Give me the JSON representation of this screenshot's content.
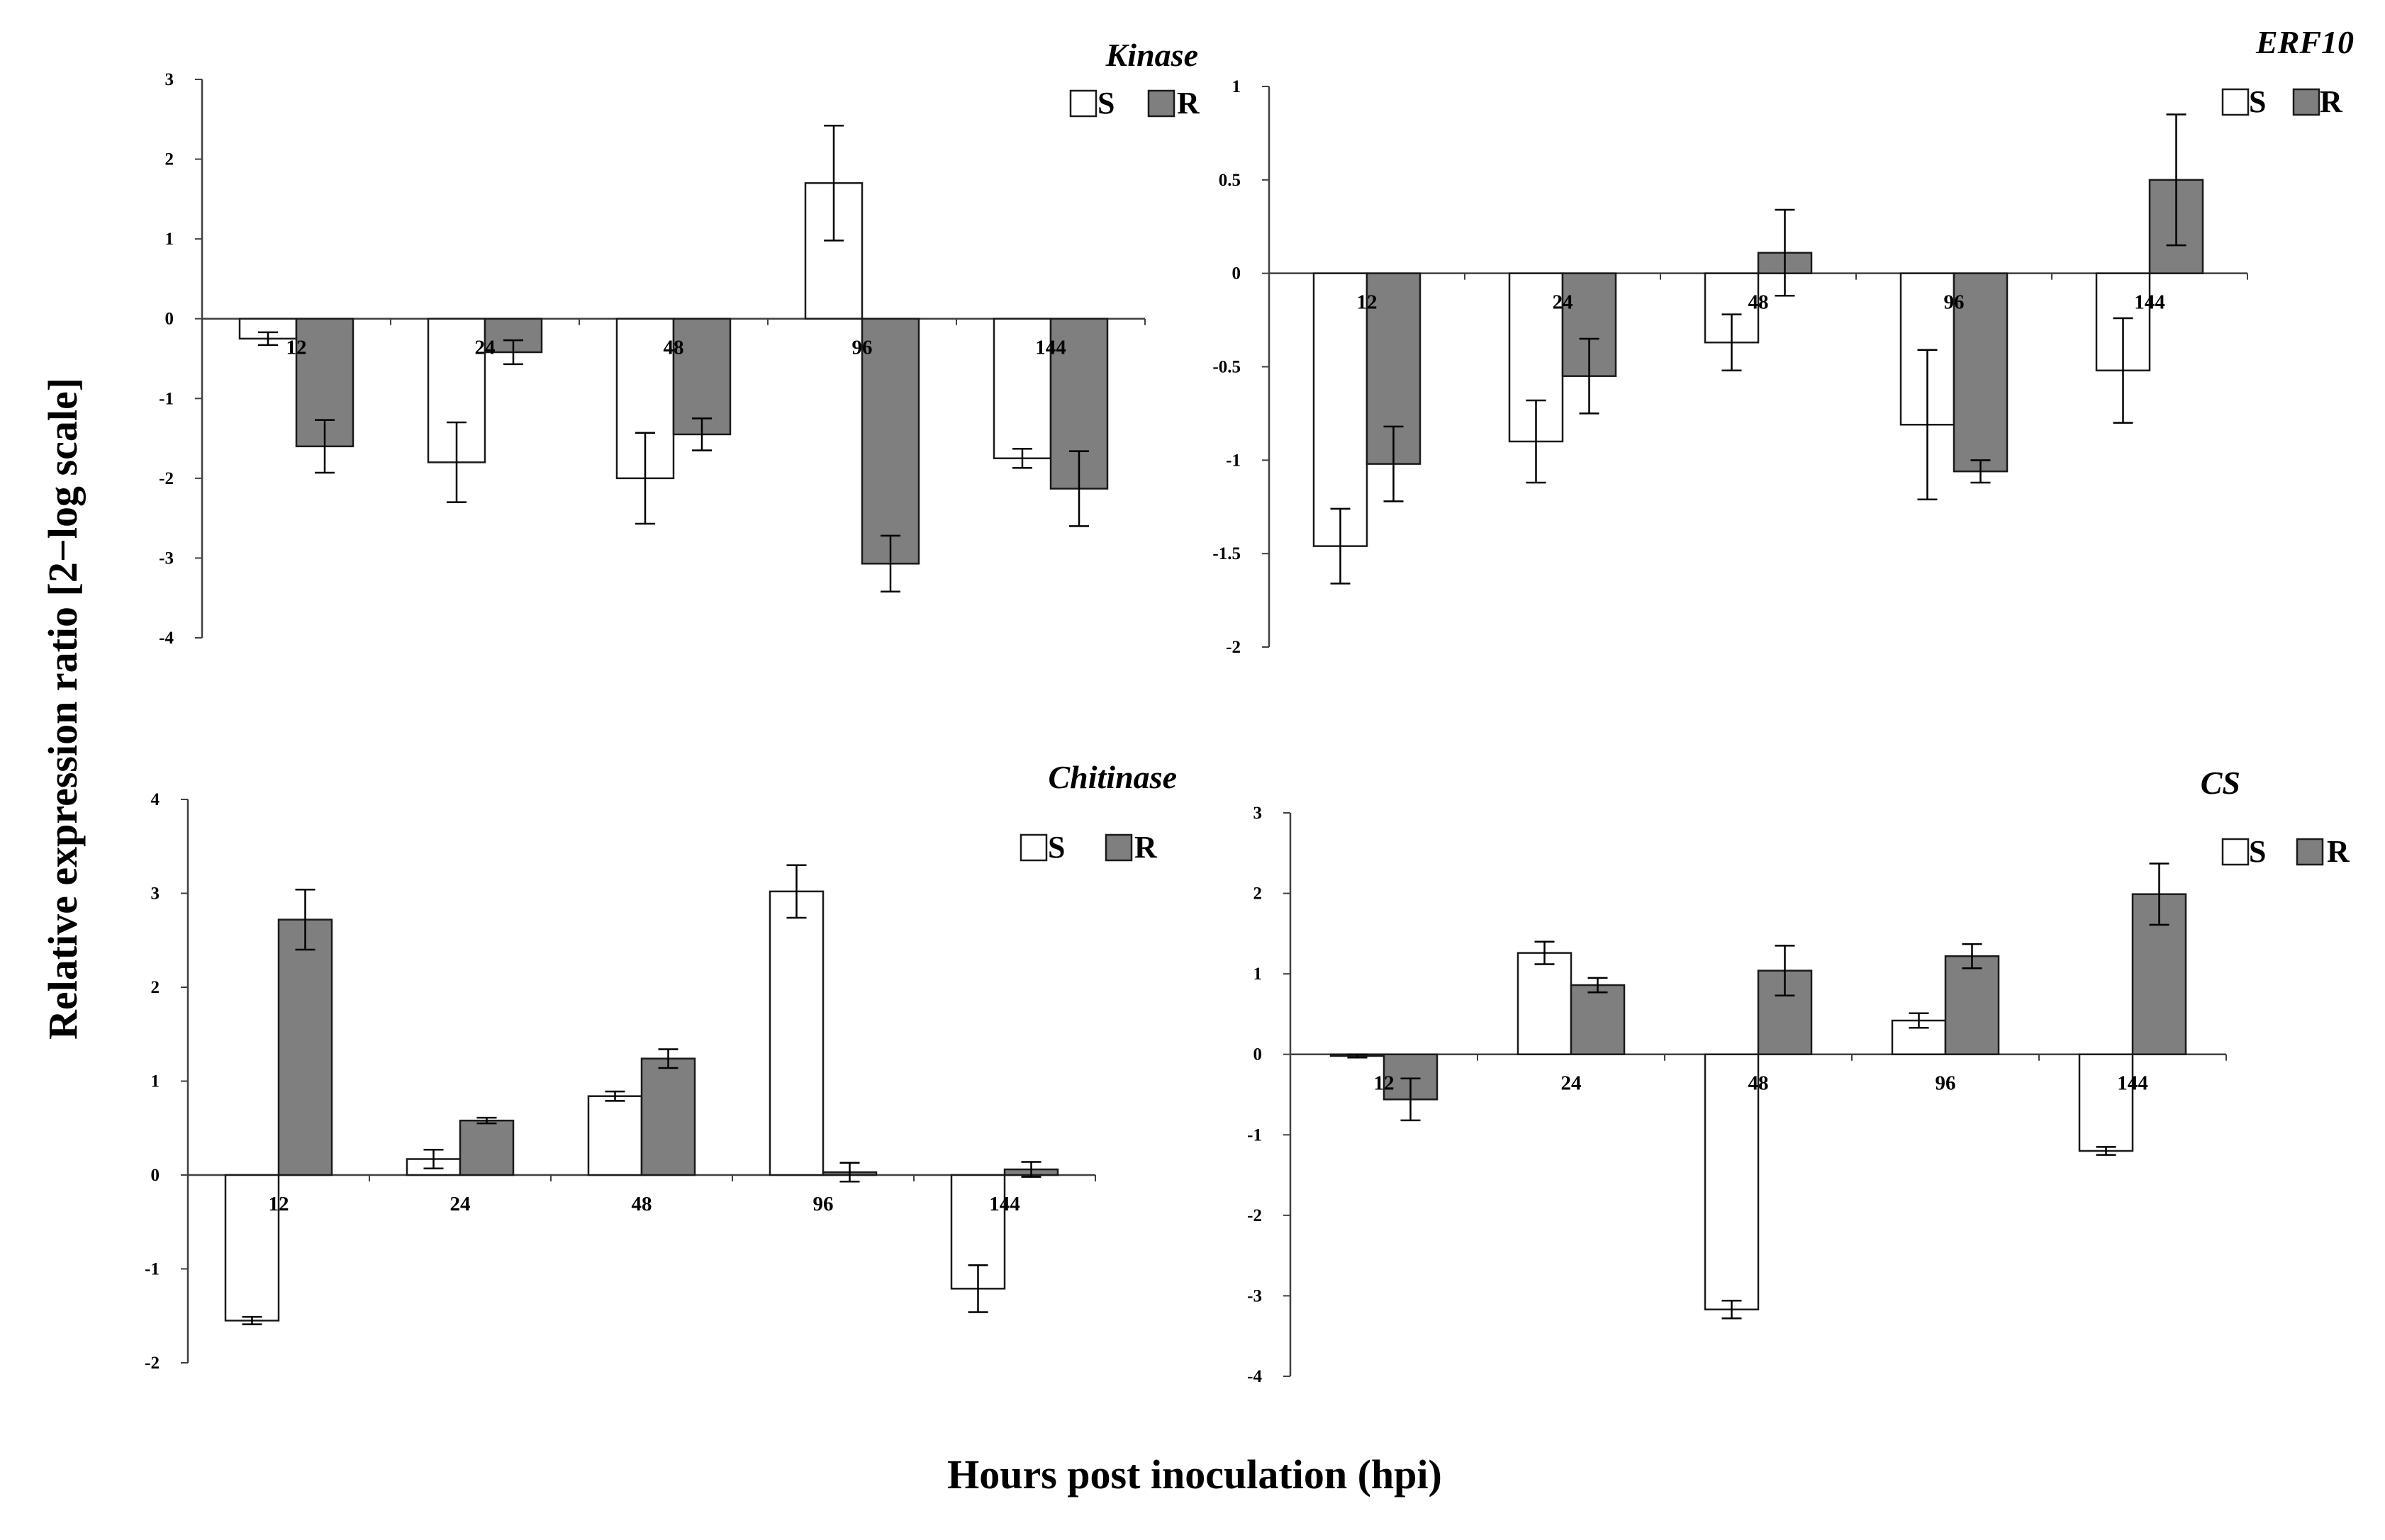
{
  "axis_labels": {
    "y": "Relative expression ratio [2−log scale]",
    "x": "Hours post inoculation (hpi)"
  },
  "legend": {
    "s_label": "S",
    "r_label": "R"
  },
  "colors": {
    "S": "#ffffff",
    "R": "#7f7f7f",
    "axis": "#404040",
    "stroke": "#1a1a1a"
  },
  "chart_data": [
    {
      "type": "bar",
      "title": "Kinase",
      "categories": [
        "12",
        "24",
        "48",
        "96",
        "144"
      ],
      "ylim": [
        -4,
        3
      ],
      "ticks": [
        "3",
        "2",
        "1",
        "0",
        "-1",
        "-2",
        "-3",
        "-4"
      ],
      "series": [
        {
          "name": "S",
          "values": [
            -0.25,
            -1.8,
            -2.0,
            1.7,
            -1.75
          ],
          "errors": [
            0.08,
            0.5,
            0.57,
            0.72,
            0.12
          ]
        },
        {
          "name": "R",
          "values": [
            -1.6,
            -0.42,
            -1.45,
            -3.07,
            -2.13
          ],
          "errors": [
            0.33,
            0.15,
            0.2,
            0.35,
            0.47
          ]
        }
      ]
    },
    {
      "type": "bar",
      "title": "ERF10",
      "categories": [
        "12",
        "24",
        "48",
        "96",
        "144"
      ],
      "ylim": [
        -2,
        1
      ],
      "ticks": [
        "1",
        "0.5",
        "0",
        "-0.5",
        "-1",
        "-1.5",
        "-2"
      ],
      "series": [
        {
          "name": "S",
          "values": [
            -1.46,
            -0.9,
            -0.37,
            -0.81,
            -0.52
          ],
          "errors": [
            0.2,
            0.22,
            0.15,
            0.4,
            0.28
          ]
        },
        {
          "name": "R",
          "values": [
            -1.02,
            -0.55,
            0.11,
            -1.06,
            0.5
          ],
          "errors": [
            0.2,
            0.2,
            0.23,
            0.06,
            0.35
          ]
        }
      ]
    },
    {
      "type": "bar",
      "title": "Chitinase",
      "categories": [
        "12",
        "24",
        "48",
        "96",
        "144"
      ],
      "ylim": [
        -2,
        4
      ],
      "ticks": [
        "4",
        "3",
        "2",
        "1",
        "0",
        "-1",
        "-2"
      ],
      "series": [
        {
          "name": "S",
          "values": [
            -1.55,
            0.17,
            0.84,
            3.02,
            -1.21
          ],
          "errors": [
            0.04,
            0.1,
            0.05,
            0.28,
            0.25
          ]
        },
        {
          "name": "R",
          "values": [
            2.72,
            0.58,
            1.24,
            0.03,
            0.06
          ],
          "errors": [
            0.32,
            0.03,
            0.1,
            0.1,
            0.08
          ]
        }
      ]
    },
    {
      "type": "bar",
      "title": "CS",
      "categories": [
        "12",
        "24",
        "48",
        "96",
        "144"
      ],
      "ylim": [
        -4,
        3
      ],
      "ticks": [
        "3",
        "2",
        "1",
        "0",
        "-1",
        "-2",
        "-3",
        "-4"
      ],
      "series": [
        {
          "name": "S",
          "values": [
            -0.02,
            1.26,
            -3.17,
            0.42,
            -1.2
          ],
          "errors": [
            0.02,
            0.14,
            0.11,
            0.09,
            0.05
          ]
        },
        {
          "name": "R",
          "values": [
            -0.56,
            0.86,
            1.04,
            1.22,
            1.99
          ],
          "errors": [
            0.26,
            0.09,
            0.31,
            0.15,
            0.38
          ]
        }
      ]
    }
  ]
}
